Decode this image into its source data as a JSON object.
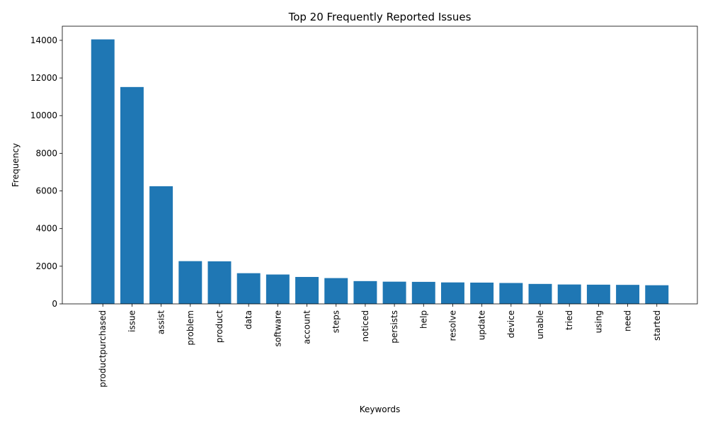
{
  "colors": {
    "bar": "#1f77b4",
    "axis": "#000000",
    "background": "#ffffff"
  },
  "chart_data": {
    "type": "bar",
    "title": "Top 20 Frequently Reported Issues",
    "xlabel": "Keywords",
    "ylabel": "Frequency",
    "ylim": [
      0,
      14750
    ],
    "yticks": [
      0,
      2000,
      4000,
      6000,
      8000,
      10000,
      12000,
      14000
    ],
    "grid": false,
    "categories": [
      "productpurchased",
      "issue",
      "assist",
      "problem",
      "product",
      "data",
      "software",
      "account",
      "steps",
      "noticed",
      "persists",
      "help",
      "resolve",
      "update",
      "device",
      "unable",
      "tried",
      "using",
      "need",
      "started"
    ],
    "values": [
      14050,
      11520,
      6250,
      2270,
      2260,
      1630,
      1560,
      1430,
      1370,
      1210,
      1180,
      1170,
      1140,
      1130,
      1110,
      1060,
      1030,
      1020,
      1010,
      990
    ]
  }
}
